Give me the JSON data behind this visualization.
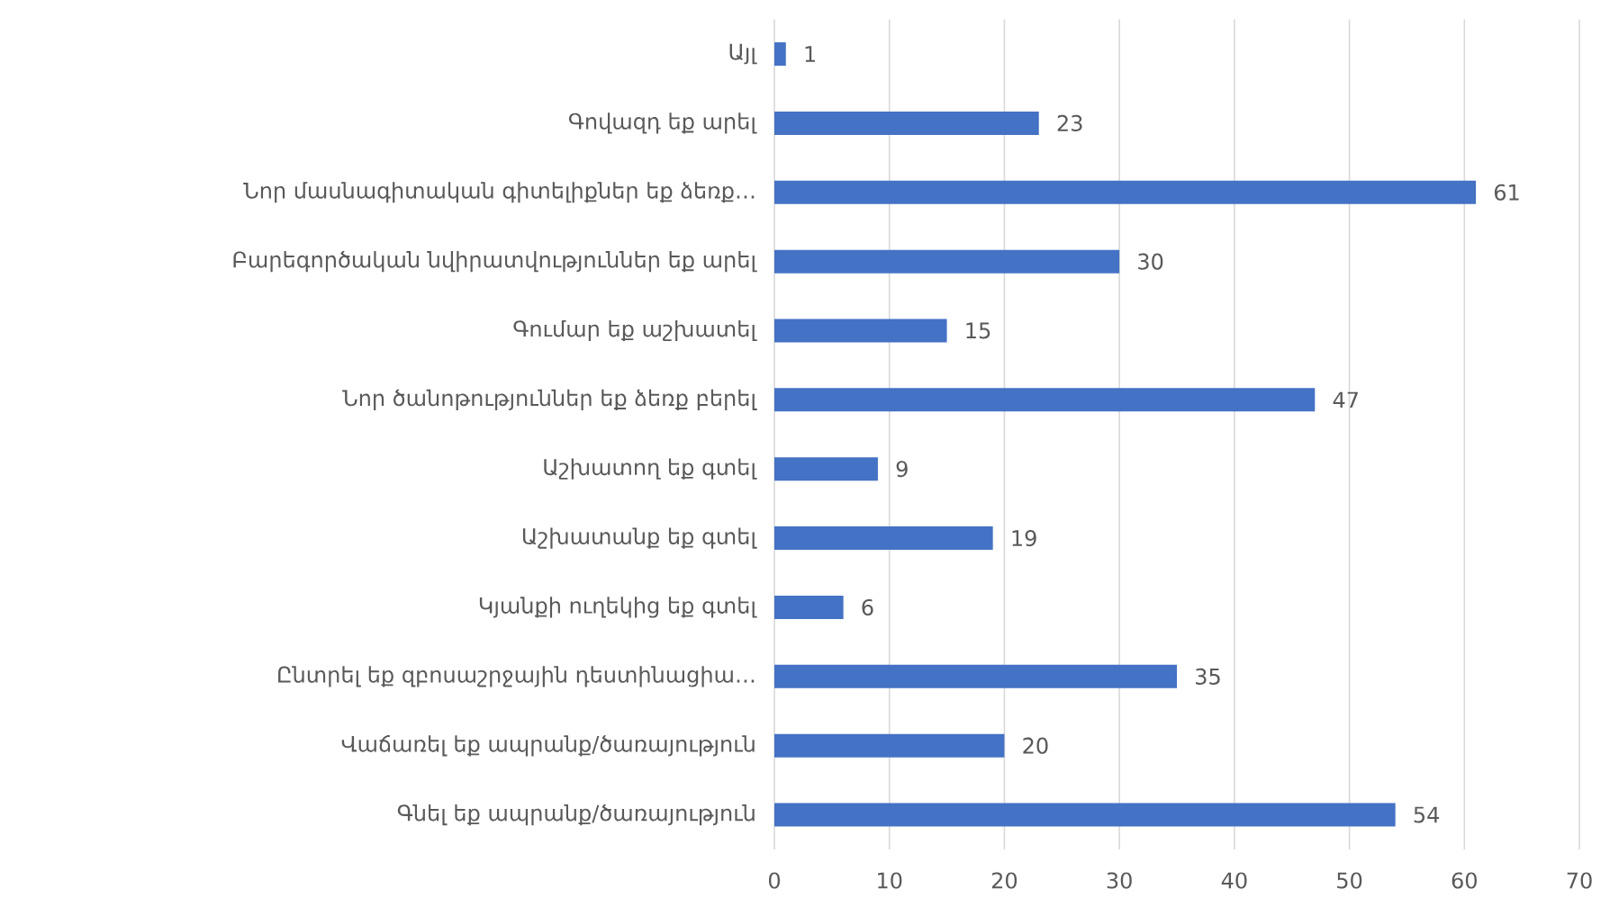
{
  "chart_data": {
    "type": "bar",
    "orientation": "horizontal",
    "categories": [
      "Այլ",
      "Գովազդ եք արել",
      "Նոր մասնագիտական գիտելիքներ եք ձեռք…",
      "Բարեգործական նվիրատվություններ եք արել",
      "Գումար եք աշխատել",
      "Նոր ծանոթություններ եք ձեռք բերել",
      "Աշխատող եք գտել",
      "Աշխատանք եք գտել",
      "Կյանքի ուղեկից եք գտել",
      "Ընտրել եք զբոսաշրջային դեստինացիա…",
      "Վաճառել եք ապրանք/ծառայություն",
      "Գնել եք ապրանք/ծառայություն"
    ],
    "values": [
      1,
      23,
      61,
      30,
      15,
      47,
      9,
      19,
      6,
      35,
      20,
      54
    ],
    "color": "#4472c4",
    "xlim": [
      0,
      70
    ],
    "xticks": [
      0,
      10,
      20,
      30,
      40,
      50,
      60,
      70
    ],
    "grid": "x",
    "data_labels": true
  }
}
